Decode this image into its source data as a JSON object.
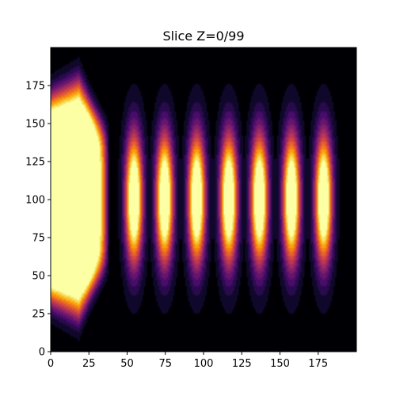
{
  "chart_data": {
    "type": "heatmap",
    "title": "Slice Z=0/99",
    "xlabel": "",
    "ylabel": "",
    "xlim": [
      0,
      199
    ],
    "ylim": [
      0,
      199
    ],
    "x_ticks": [
      0,
      25,
      50,
      75,
      100,
      125,
      150,
      175
    ],
    "y_ticks": [
      0,
      25,
      50,
      75,
      100,
      125,
      150,
      175
    ],
    "colormap": "inferno",
    "background_color": "#000004",
    "grid": false,
    "legend": "none",
    "source_blob": {
      "x_range": [
        0,
        36
      ],
      "y_center": 100,
      "y_halfwidth_at_x0": 62,
      "y_halfwidth_at_x22": 72
    },
    "pulses": [
      {
        "x_center": 54,
        "y_center": 100,
        "x_halfwidth": 9,
        "y_halfwidth": 60
      },
      {
        "x_center": 74,
        "y_center": 100,
        "x_halfwidth": 9,
        "y_halfwidth": 60
      },
      {
        "x_center": 95,
        "y_center": 100,
        "x_halfwidth": 9,
        "y_halfwidth": 60
      },
      {
        "x_center": 116,
        "y_center": 100,
        "x_halfwidth": 9,
        "y_halfwidth": 60
      },
      {
        "x_center": 136,
        "y_center": 100,
        "x_halfwidth": 9,
        "y_halfwidth": 60
      },
      {
        "x_center": 157,
        "y_center": 100,
        "x_halfwidth": 9,
        "y_halfwidth": 60
      },
      {
        "x_center": 178,
        "y_center": 100,
        "x_halfwidth": 9,
        "y_halfwidth": 60
      }
    ]
  }
}
